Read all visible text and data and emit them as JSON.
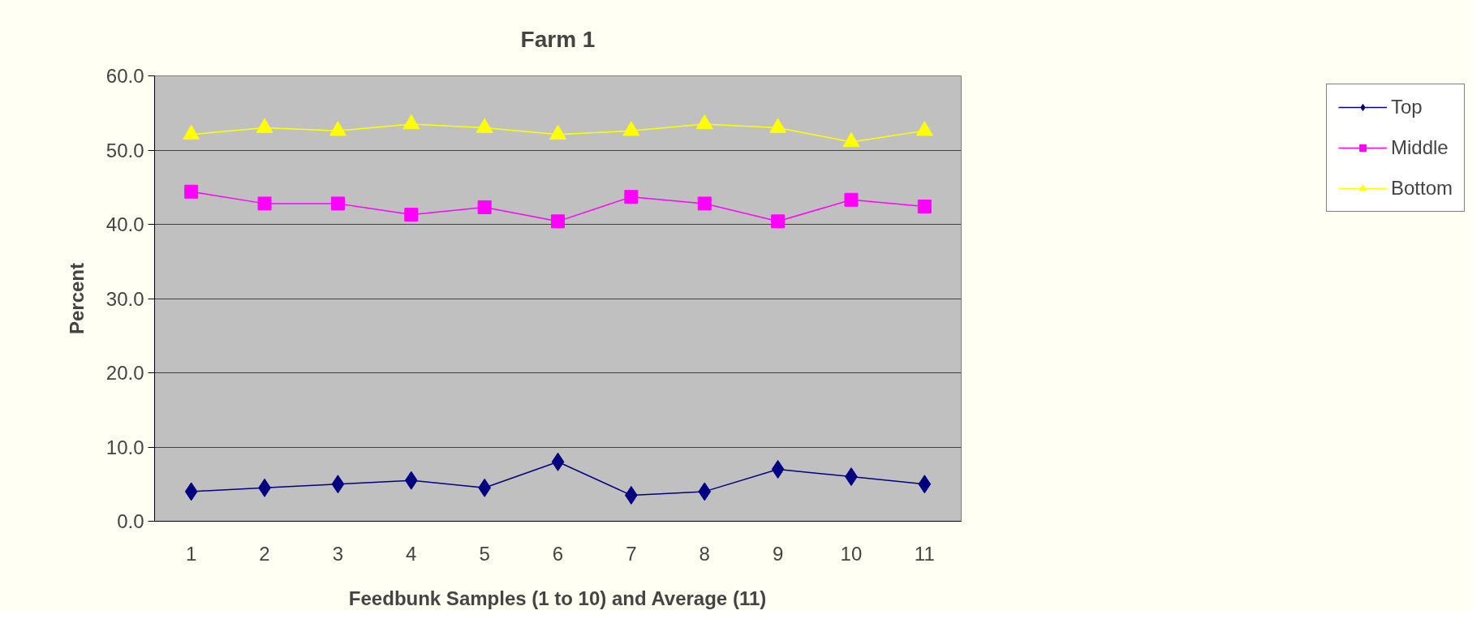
{
  "chart_data": {
    "type": "line",
    "title": "Farm 1",
    "xlabel": "Feedbunk Samples (1 to 10) and Average (11)",
    "ylabel": "Percent",
    "categories": [
      "1",
      "2",
      "3",
      "4",
      "5",
      "6",
      "7",
      "8",
      "9",
      "10",
      "11"
    ],
    "series": [
      {
        "name": "Top",
        "color": "#000080",
        "marker": "diamond",
        "values": [
          4.0,
          4.5,
          5.0,
          5.5,
          4.5,
          8.0,
          3.5,
          4.0,
          7.0,
          6.0,
          5.0
        ]
      },
      {
        "name": "Middle",
        "color": "#ff00ff",
        "marker": "square",
        "values": [
          44.4,
          42.8,
          42.8,
          41.3,
          42.3,
          40.4,
          43.7,
          42.8,
          40.4,
          43.3,
          42.4
        ]
      },
      {
        "name": "Bottom",
        "color": "#ffff00",
        "marker": "triangle",
        "values": [
          52.1,
          53.0,
          52.6,
          53.5,
          53.0,
          52.1,
          52.6,
          53.5,
          53.0,
          51.1,
          52.6
        ]
      }
    ],
    "ylim": [
      0,
      60
    ],
    "yticks": [
      {
        "value": 0,
        "label": "0.0"
      },
      {
        "value": 10,
        "label": "10.0"
      },
      {
        "value": 20,
        "label": "20.0"
      },
      {
        "value": 30,
        "label": "30.0"
      },
      {
        "value": 40,
        "label": "40.0"
      },
      {
        "value": 50,
        "label": "50.0"
      },
      {
        "value": 60,
        "label": "60.0"
      }
    ],
    "grid": "y",
    "legend": "right",
    "line_style": "solid"
  }
}
